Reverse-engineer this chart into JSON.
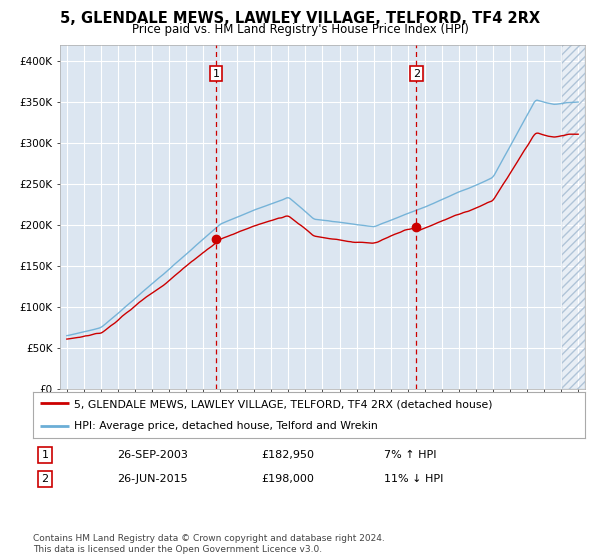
{
  "title": "5, GLENDALE MEWS, LAWLEY VILLAGE, TELFORD, TF4 2RX",
  "subtitle": "Price paid vs. HM Land Registry's House Price Index (HPI)",
  "legend_line1": "5, GLENDALE MEWS, LAWLEY VILLAGE, TELFORD, TF4 2RX (detached house)",
  "legend_line2": "HPI: Average price, detached house, Telford and Wrekin",
  "transaction1_date": "26-SEP-2003",
  "transaction1_price": "£182,950",
  "transaction1_hpi": "7% ↑ HPI",
  "transaction1_year": 2003.75,
  "transaction1_value": 182950,
  "transaction2_date": "26-JUN-2015",
  "transaction2_price": "£198,000",
  "transaction2_hpi": "11% ↓ HPI",
  "transaction2_year": 2015.5,
  "transaction2_value": 198000,
  "hpi_color": "#6baed6",
  "price_color": "#cc0000",
  "background_color": "#ffffff",
  "plot_bg_color": "#dce6f1",
  "grid_color": "#ffffff",
  "hatch_color": "#c8d4e3",
  "copyright": "Contains HM Land Registry data © Crown copyright and database right 2024.\nThis data is licensed under the Open Government Licence v3.0.",
  "ylim_max": 420000,
  "xlim_start": 1994.6,
  "xlim_end": 2025.4
}
